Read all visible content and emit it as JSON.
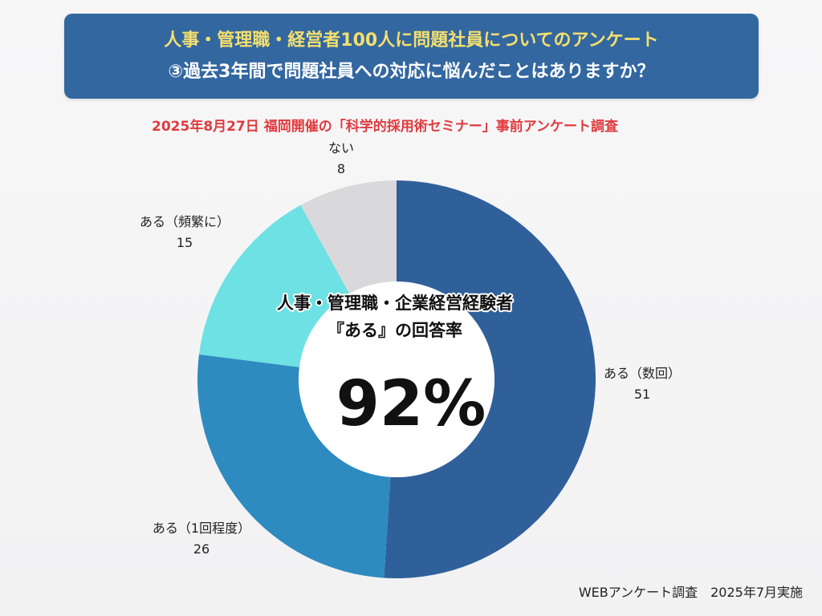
{
  "header": {
    "title_line1": "人事・管理職・経営者100人に問題社員についてのアンケート",
    "title_line2": "③過去3年間で問題社員への対応に悩んだことはありますか？"
  },
  "subtitle": "2025年8月27日 福岡開催の「科学的採用術セミナー」事前アンケート調査",
  "footer": "WEBアンケート調査　2025年7月実施",
  "center": {
    "line1": "人事・管理職・企業経営経験者",
    "line2": "『ある』の回答率",
    "value": "92%"
  },
  "chart_data": {
    "type": "pie",
    "variant": "donut",
    "title": "③過去3年間で問題社員への対応に悩んだことはありますか？",
    "categories": [
      "ある（数回）",
      "ある（1回程度）",
      "ある（頻繁に）",
      "ない"
    ],
    "values": [
      51,
      26,
      15,
      8
    ],
    "colors": [
      "#30609a",
      "#2e8bc0",
      "#6de1e3",
      "#d9d9db"
    ],
    "start_angle_deg": 0,
    "direction": "clockwise"
  }
}
